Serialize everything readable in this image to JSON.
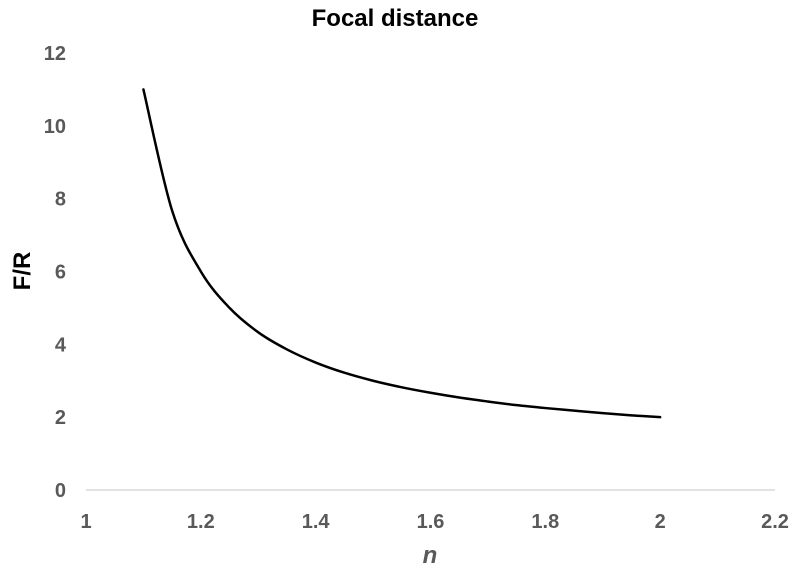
{
  "chart_data": {
    "type": "line",
    "title": "Focal distance",
    "xlabel": "n",
    "ylabel": "F/R",
    "xlim": [
      1,
      2.2
    ],
    "ylim": [
      0,
      12
    ],
    "xticks": [
      "1",
      "1.2",
      "1.4",
      "1.6",
      "1.8",
      "2",
      "2.2"
    ],
    "yticks": [
      "0",
      "2",
      "4",
      "6",
      "8",
      "10",
      "12"
    ],
    "grid": false,
    "legend": "none",
    "series": [
      {
        "color": "#000000",
        "x": [
          1.1,
          1.15,
          1.2,
          1.25,
          1.3,
          1.35,
          1.4,
          1.45,
          1.5,
          1.55,
          1.6,
          1.65,
          1.7,
          1.75,
          1.8,
          1.85,
          1.9,
          1.95,
          2.0
        ],
        "y": [
          11.0,
          7.67,
          6.0,
          5.0,
          4.33,
          3.86,
          3.5,
          3.22,
          3.0,
          2.82,
          2.67,
          2.54,
          2.43,
          2.33,
          2.25,
          2.18,
          2.11,
          2.05,
          2.0
        ]
      }
    ]
  }
}
